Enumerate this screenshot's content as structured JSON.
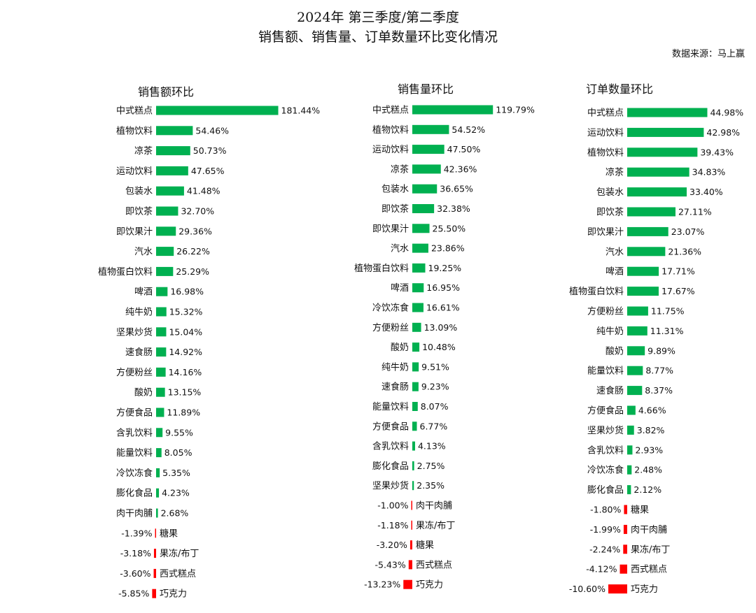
{
  "title_line1": "2024年 第三季度/第二季度",
  "title_line2": "销售额、销售量、订单数量环比变化情况",
  "source": "数据来源：马上赢",
  "colors": {
    "positive": "#00b050",
    "negative": "#ff0000"
  },
  "chart_data": [
    {
      "type": "bar",
      "orientation": "horizontal",
      "title": "销售额环比",
      "unit": "%",
      "categories": [
        "中式糕点",
        "植物饮料",
        "凉茶",
        "运动饮料",
        "包装水",
        "即饮茶",
        "即饮果汁",
        "汽水",
        "植物蛋白饮料",
        "啤酒",
        "纯牛奶",
        "坚果炒货",
        "速食肠",
        "方便粉丝",
        "酸奶",
        "方便食品",
        "含乳饮料",
        "能量饮料",
        "冷饮冻食",
        "膨化食品",
        "肉干肉脯",
        "糖果",
        "果冻/布丁",
        "西式糕点",
        "巧克力"
      ],
      "values": [
        181.44,
        54.46,
        50.73,
        47.65,
        41.48,
        32.7,
        29.36,
        26.22,
        25.29,
        16.98,
        15.32,
        15.04,
        14.92,
        14.16,
        13.15,
        11.89,
        9.55,
        8.05,
        5.35,
        4.23,
        2.68,
        -1.39,
        -3.18,
        -3.6,
        -5.85
      ],
      "labels": [
        "181.44%",
        "54.46%",
        "50.73%",
        "47.65%",
        "41.48%",
        "32.70%",
        "29.36%",
        "26.22%",
        "25.29%",
        "16.98%",
        "15.32%",
        "15.04%",
        "14.92%",
        "14.16%",
        "13.15%",
        "11.89%",
        "9.55%",
        "8.05%",
        "5.35%",
        "4.23%",
        "2.68%",
        "-1.39%",
        "-3.18%",
        "-3.60%",
        "-5.85%"
      ]
    },
    {
      "type": "bar",
      "orientation": "horizontal",
      "title": "销售量环比",
      "unit": "%",
      "categories": [
        "中式糕点",
        "植物饮料",
        "运动饮料",
        "凉茶",
        "包装水",
        "即饮茶",
        "即饮果汁",
        "汽水",
        "植物蛋白饮料",
        "啤酒",
        "冷饮冻食",
        "方便粉丝",
        "酸奶",
        "纯牛奶",
        "速食肠",
        "能量饮料",
        "方便食品",
        "含乳饮料",
        "膨化食品",
        "坚果炒货",
        "肉干肉脯",
        "果冻/布丁",
        "糖果",
        "西式糕点",
        "巧克力"
      ],
      "values": [
        119.79,
        54.52,
        47.5,
        42.36,
        36.65,
        32.38,
        25.5,
        23.86,
        19.25,
        16.95,
        16.61,
        13.09,
        10.48,
        9.51,
        9.23,
        8.07,
        6.77,
        4.13,
        2.75,
        2.35,
        -1.0,
        -1.18,
        -3.2,
        -5.43,
        -13.23
      ],
      "labels": [
        "119.79%",
        "54.52%",
        "47.50%",
        "42.36%",
        "36.65%",
        "32.38%",
        "25.50%",
        "23.86%",
        "19.25%",
        "16.95%",
        "16.61%",
        "13.09%",
        "10.48%",
        "9.51%",
        "9.23%",
        "8.07%",
        "6.77%",
        "4.13%",
        "2.75%",
        "2.35%",
        "-1.00%",
        "-1.18%",
        "-3.20%",
        "-5.43%",
        "-13.23%"
      ]
    },
    {
      "type": "bar",
      "orientation": "horizontal",
      "title": "订单数量环比",
      "unit": "%",
      "categories": [
        "中式糕点",
        "运动饮料",
        "植物饮料",
        "凉茶",
        "包装水",
        "即饮茶",
        "即饮果汁",
        "汽水",
        "啤酒",
        "植物蛋白饮料",
        "方便粉丝",
        "纯牛奶",
        "酸奶",
        "能量饮料",
        "速食肠",
        "方便食品",
        "坚果炒货",
        "含乳饮料",
        "冷饮冻食",
        "膨化食品",
        "糖果",
        "肉干肉脯",
        "果冻/布丁",
        "西式糕点",
        "巧克力"
      ],
      "values": [
        44.98,
        42.98,
        39.43,
        34.83,
        33.4,
        27.11,
        23.07,
        21.36,
        17.71,
        17.67,
        11.75,
        11.31,
        9.89,
        8.77,
        8.37,
        4.66,
        3.82,
        2.93,
        2.48,
        2.12,
        -1.8,
        -1.99,
        -2.24,
        -4.12,
        -10.6
      ],
      "labels": [
        "44.98%",
        "42.98%",
        "39.43%",
        "34.83%",
        "33.40%",
        "27.11%",
        "23.07%",
        "21.36%",
        "17.71%",
        "17.67%",
        "11.75%",
        "11.31%",
        "9.89%",
        "8.77%",
        "8.37%",
        "4.66%",
        "3.82%",
        "2.93%",
        "2.48%",
        "2.12%",
        "-1.80%",
        "-1.99%",
        "-2.24%",
        "-4.12%",
        "-10.60%"
      ]
    }
  ]
}
